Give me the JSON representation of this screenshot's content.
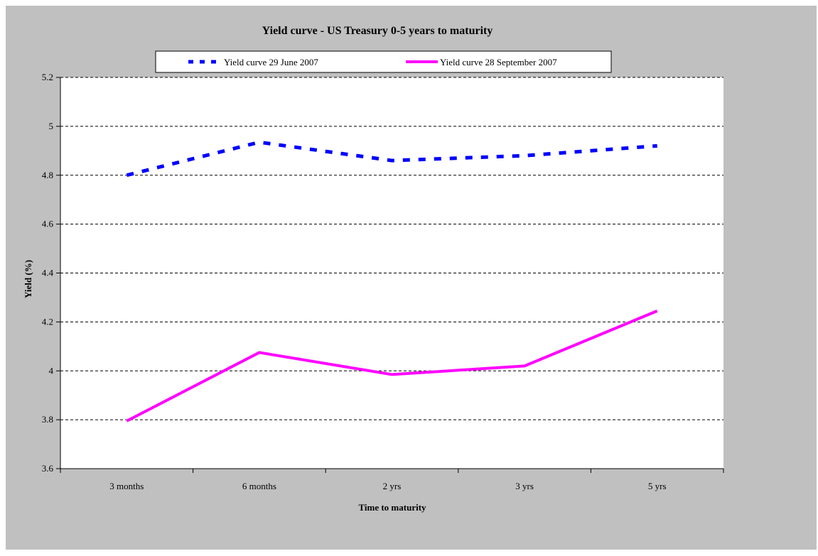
{
  "chart_data": {
    "type": "line",
    "title": "Yield curve - US Treasury 0-5 years to maturity",
    "xlabel": "Time to maturity",
    "ylabel": "Yield (%)",
    "categories": [
      "3 months",
      "6 months",
      "2 yrs",
      "3 yrs",
      "5 yrs"
    ],
    "ylim": [
      3.6,
      5.2
    ],
    "yticks": [
      "3.6",
      "3.8",
      "4",
      "4.2",
      "4.4",
      "4.6",
      "4.8",
      "5",
      "5.2"
    ],
    "grid": true,
    "legend_position": "top",
    "series": [
      {
        "name": "Yield curve 29 June 2007",
        "values": [
          4.8,
          4.935,
          4.86,
          4.88,
          4.92
        ],
        "color": "#0000ff",
        "style": "dashed"
      },
      {
        "name": "Yield curve 28 September 2007",
        "values": [
          3.795,
          4.075,
          3.985,
          4.02,
          4.245
        ],
        "color": "#ff00ff",
        "style": "solid"
      }
    ]
  }
}
